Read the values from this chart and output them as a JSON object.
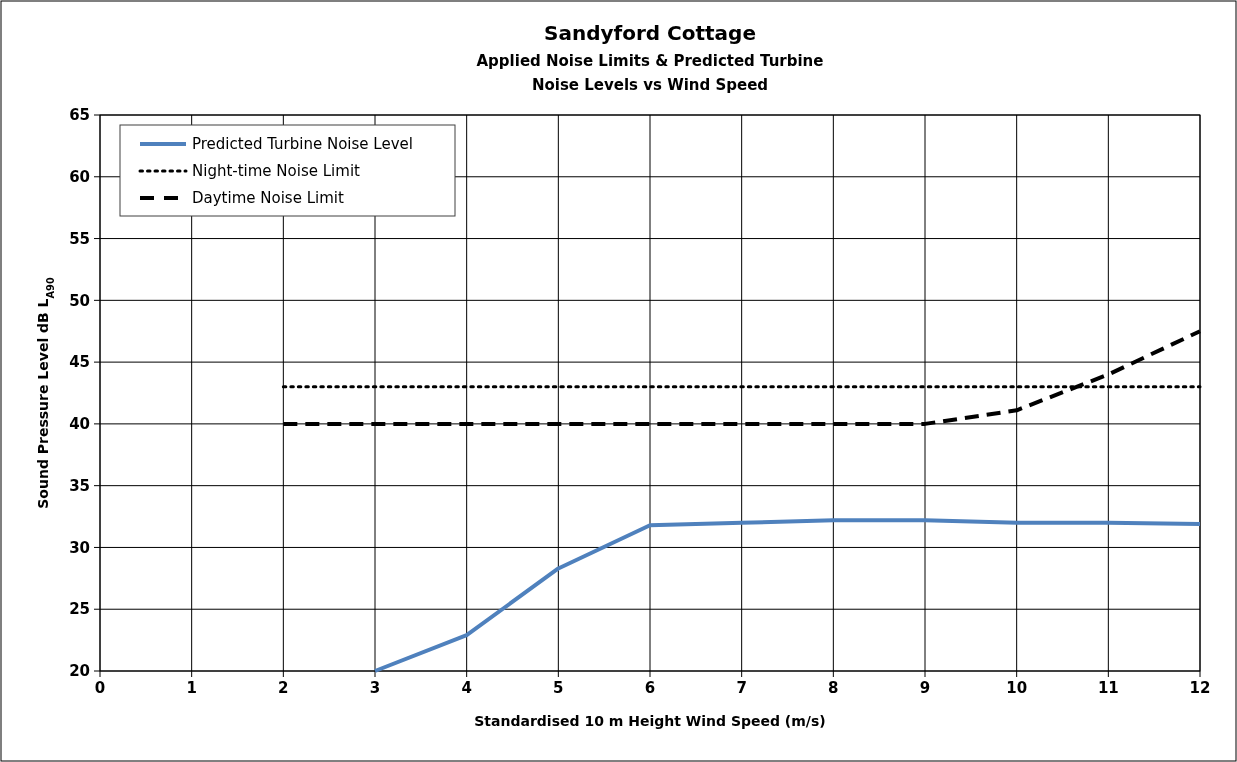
{
  "chart_data": {
    "type": "line",
    "title": "Sandyford Cottage",
    "subtitle": "Applied Noise Limits & Predicted Turbine\nNoise Levels vs Wind Speed",
    "xlabel": "Standardised 10 m Height Wind Speed (m/s)",
    "ylabel": "Sound Pressure Level dB L$_{A90}$",
    "xlim": [
      0,
      12
    ],
    "xticks": [
      0,
      1,
      2,
      3,
      4,
      5,
      6,
      7,
      8,
      9,
      10,
      11,
      12
    ],
    "ylim": [
      20,
      65
    ],
    "yticks": [
      20,
      25,
      30,
      35,
      40,
      45,
      50,
      55,
      60,
      65
    ],
    "grid": true,
    "legend": "top left",
    "marker": "none",
    "series": [
      {
        "name": "Predicted Turbine Noise Level",
        "color": "#4f81bd",
        "line_style": "solid",
        "x": [
          3,
          4,
          5,
          6,
          7,
          8,
          9,
          10,
          11,
          12
        ],
        "values": [
          20,
          22.9,
          28.3,
          31.8,
          32.0,
          32.2,
          32.2,
          32.0,
          32.0,
          31.9
        ]
      },
      {
        "name": "Night-time Noise Limit",
        "color": "#000000",
        "line_style": "dotted",
        "x": [
          2,
          3,
          4,
          5,
          6,
          7,
          8,
          9,
          10,
          11,
          12
        ],
        "values": [
          43,
          43,
          43,
          43,
          43,
          43,
          43,
          43,
          43,
          43,
          43
        ]
      },
      {
        "name": "Daytime Noise Limit",
        "color": "#000000",
        "line_style": "dashed",
        "x": [
          2,
          3,
          4,
          5,
          6,
          7,
          8,
          9,
          10,
          11,
          12
        ],
        "values": [
          40,
          40,
          40,
          40,
          40,
          40,
          40,
          40,
          41.1,
          44,
          47.5
        ]
      }
    ]
  }
}
